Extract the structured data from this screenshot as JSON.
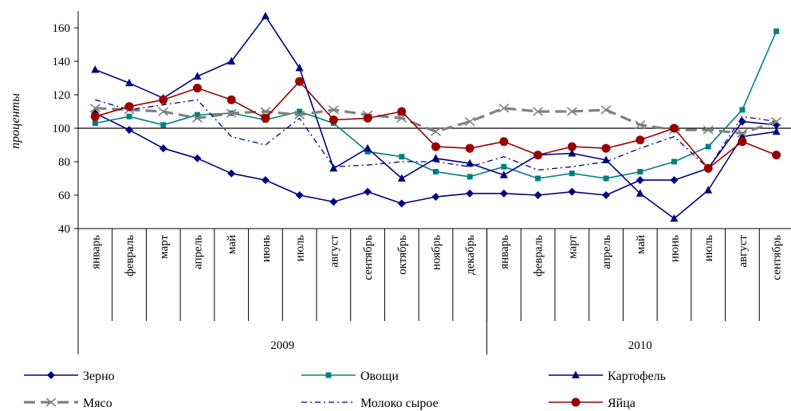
{
  "chart_data": {
    "type": "line",
    "ylabel": "проценты",
    "ylim": [
      40,
      170
    ],
    "yticks": [
      40,
      60,
      80,
      100,
      120,
      140,
      160
    ],
    "reference_line": 100,
    "categories": [
      "январь",
      "февраль",
      "март",
      "апрель",
      "май",
      "июнь",
      "июль",
      "август",
      "сентябрь",
      "октябрь",
      "ноябрь",
      "декабрь",
      "январь",
      "февраль",
      "март",
      "апрель",
      "май",
      "июнь",
      "июль",
      "август",
      "сентябрь"
    ],
    "years": [
      {
        "label": "2009",
        "start": 0,
        "end": 11
      },
      {
        "label": "2010",
        "start": 12,
        "end": 20
      }
    ],
    "legend_position": "bottom",
    "series": [
      {
        "name": "Зерно",
        "color": "#000080",
        "marker": "diamond",
        "dash": "solid",
        "values": [
          109,
          99,
          88,
          82,
          73,
          69,
          60,
          56,
          62,
          55,
          59,
          61,
          61,
          60,
          62,
          60,
          69,
          69,
          76,
          104,
          102
        ]
      },
      {
        "name": "Овощи",
        "color": "#008080",
        "marker": "square",
        "dash": "solid",
        "values": [
          103,
          107,
          102,
          108,
          109,
          105,
          110,
          103,
          86,
          83,
          74,
          71,
          77,
          70,
          73,
          70,
          74,
          80,
          89,
          111,
          158
        ]
      },
      {
        "name": "Картофель",
        "color": "#000080",
        "marker": "triangle",
        "dash": "solid",
        "values": [
          135,
          127,
          118,
          131,
          140,
          167,
          136,
          76,
          88,
          70,
          82,
          79,
          72,
          84,
          85,
          81,
          61,
          46,
          63,
          95,
          98
        ]
      },
      {
        "name": "Мясо",
        "color": "#808080",
        "marker": "x",
        "dash": "dash",
        "values": [
          112,
          111,
          110,
          106,
          109,
          110,
          108,
          111,
          108,
          106,
          98,
          104,
          112,
          110,
          110,
          111,
          102,
          99,
          99,
          97,
          104
        ]
      },
      {
        "name": "Молоко сырое",
        "color": "#000080",
        "marker": "none",
        "dash": "dashdot",
        "values": [
          117,
          111,
          114,
          117,
          95,
          90,
          106,
          77,
          78,
          80,
          80,
          77,
          83,
          75,
          77,
          80,
          88,
          95,
          76,
          107,
          104
        ]
      },
      {
        "name": "Яйца",
        "color": "#990000",
        "marker": "circle",
        "dash": "solid",
        "values": [
          107,
          113,
          117,
          124,
          117,
          106,
          128,
          105,
          106,
          110,
          89,
          88,
          92,
          84,
          89,
          88,
          93,
          100,
          76,
          92,
          84
        ]
      }
    ]
  }
}
